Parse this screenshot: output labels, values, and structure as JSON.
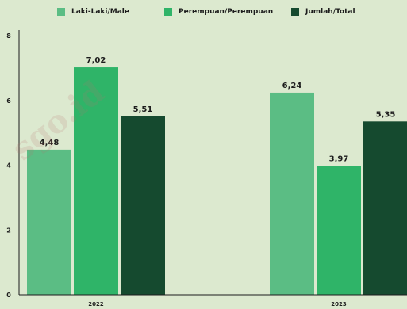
{
  "chart_data": {
    "type": "bar",
    "categories": [
      "2022",
      "2023"
    ],
    "series": [
      {
        "name": "Laki-Laki/Male",
        "values": [
          4.48,
          6.24
        ],
        "labels": [
          "4,48",
          "6,24"
        ],
        "color": "#5bbd84"
      },
      {
        "name": "Perempuan/Perempuan",
        "values": [
          7.02,
          3.97
        ],
        "labels": [
          "7,02",
          "3,97"
        ],
        "color": "#2fb468"
      },
      {
        "name": "Jumlah/Total",
        "values": [
          5.51,
          5.35
        ],
        "labels": [
          "5,51",
          "5,35"
        ],
        "color": "#154a2f"
      }
    ],
    "yticks": [
      "0",
      "2",
      "4",
      "6",
      "8"
    ],
    "ylim": [
      0,
      8
    ],
    "grid": false,
    "legend_position": "top"
  },
  "watermark": "sgo.id",
  "colors": {
    "background": "#dce9cf",
    "axis": "#1c1c1c"
  }
}
